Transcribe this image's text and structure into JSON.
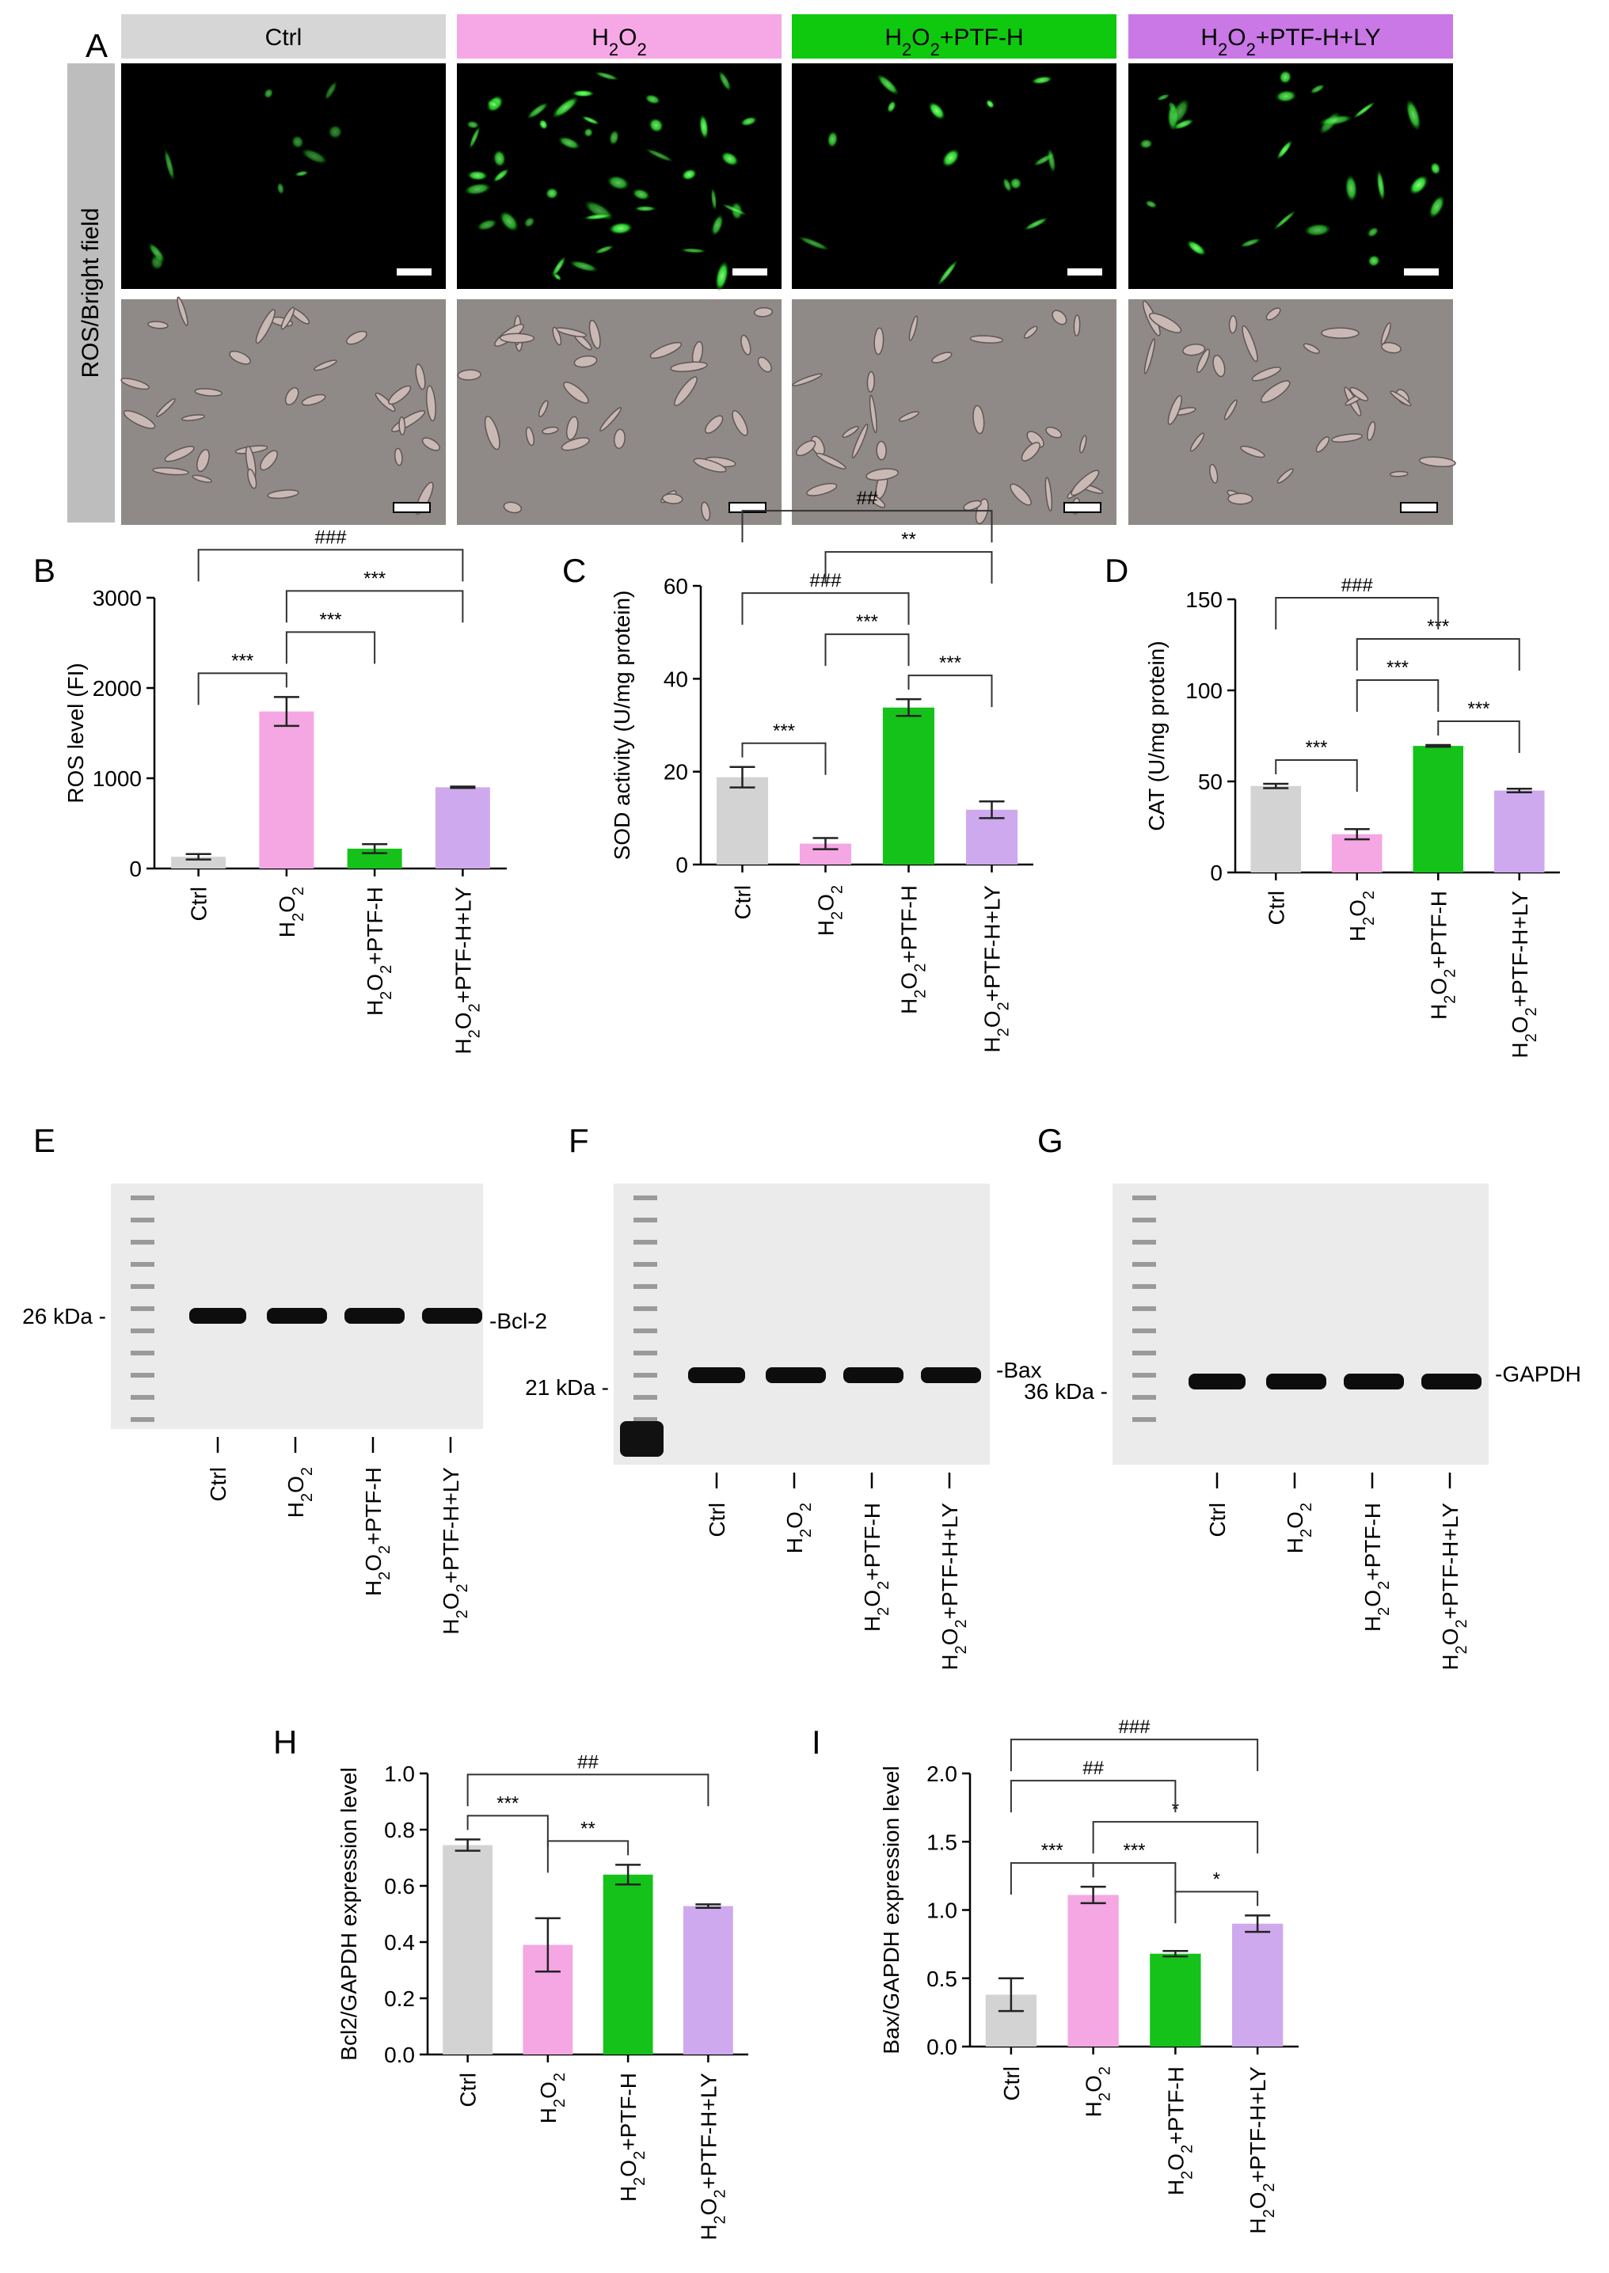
{
  "colors": {
    "ctrl": "#d3d3d3",
    "h2o2": "#f4a7e3",
    "ptfh": "#14c21a",
    "ptfhly": "#cfa9ee",
    "hdr_ctrl": "#d6d6d6",
    "hdr_h2o2": "#f6a8e6",
    "hdr_ptfh": "#0fc90f",
    "hdr_ly": "#c978e6",
    "side": "#bdbdbd"
  },
  "groups": [
    {
      "base": "Ctrl",
      "sub": "",
      "tail": ""
    },
    {
      "base": "H",
      "sub": "2",
      "mid": "O",
      "sub2": "2",
      "tail": ""
    },
    {
      "base": "H",
      "sub": "2",
      "mid": "O",
      "sub2": "2",
      "tail": "+PTF-H"
    },
    {
      "base": "H",
      "sub": "2",
      "mid": "O",
      "sub2": "2",
      "tail": "+PTF-H+LY"
    }
  ],
  "panelA": {
    "letter": "A",
    "side_label": "ROS/Bright field",
    "headers": [
      "Ctrl",
      "H2O2",
      "H2O2+PTF-H",
      "H2O2+PTF-H+LY"
    ]
  },
  "chart_data": [
    {
      "id": "B",
      "type": "bar",
      "ylabel": "ROS level (FI)",
      "ylim": [
        0,
        3000
      ],
      "yticks": [
        0,
        1000,
        2000,
        3000
      ],
      "tick_format": "int",
      "values": [
        130,
        1740,
        220,
        900
      ],
      "errors": [
        30,
        160,
        50,
        8
      ],
      "brackets": [
        {
          "a": 0,
          "b": 1,
          "level": 1,
          "text": "***"
        },
        {
          "a": 1,
          "b": 2,
          "level": 2,
          "text": "***"
        },
        {
          "a": 1,
          "b": 3,
          "level": 3,
          "text": "***"
        },
        {
          "a": 0,
          "b": 3,
          "level": 4,
          "text": "###"
        }
      ]
    },
    {
      "id": "C",
      "type": "bar",
      "ylabel": "SOD activity (U/mg protein)",
      "ylim": [
        0,
        60
      ],
      "yticks": [
        0,
        20,
        40,
        60
      ],
      "tick_format": "int",
      "values": [
        18.8,
        4.5,
        33.8,
        11.8
      ],
      "errors": [
        2.2,
        1.2,
        1.8,
        1.8
      ],
      "brackets": [
        {
          "a": 0,
          "b": 1,
          "level": 1,
          "text": "***"
        },
        {
          "a": 1,
          "b": 2,
          "level": 2,
          "text": "***"
        },
        {
          "a": 2,
          "b": 3,
          "level": 1,
          "text": "***"
        },
        {
          "a": 0,
          "b": 2,
          "level": 3,
          "text": "###"
        },
        {
          "a": 1,
          "b": 3,
          "level": 4,
          "text": "**"
        },
        {
          "a": 0,
          "b": 3,
          "level": 5,
          "text": "##"
        }
      ]
    },
    {
      "id": "D",
      "type": "bar",
      "ylabel": "CAT (U/mg protein)",
      "ylim": [
        0,
        150
      ],
      "yticks": [
        0,
        50,
        100,
        150
      ],
      "tick_format": "int",
      "values": [
        47.5,
        21,
        69.5,
        45
      ],
      "errors": [
        1.2,
        2.8,
        0.5,
        1.0
      ],
      "brackets": [
        {
          "a": 0,
          "b": 1,
          "level": 1,
          "text": "***"
        },
        {
          "a": 1,
          "b": 2,
          "level": 2,
          "text": "***"
        },
        {
          "a": 2,
          "b": 3,
          "level": 1,
          "text": "***"
        },
        {
          "a": 1,
          "b": 3,
          "level": 3,
          "text": "***"
        },
        {
          "a": 0,
          "b": 2,
          "level": 4,
          "text": "###"
        }
      ]
    },
    {
      "id": "H",
      "type": "bar",
      "ylabel": "Bcl2/GAPDH expression level",
      "ylim": [
        0,
        1.0
      ],
      "yticks": [
        0,
        0.2,
        0.4,
        0.6,
        0.8,
        1.0
      ],
      "tick_format": "1",
      "values": [
        0.745,
        0.39,
        0.64,
        0.528
      ],
      "errors": [
        0.02,
        0.095,
        0.035,
        0.006
      ],
      "brackets": [
        {
          "a": 0,
          "b": 1,
          "level": 1,
          "text": "***"
        },
        {
          "a": 1,
          "b": 2,
          "level": 1,
          "text": "**"
        },
        {
          "a": 0,
          "b": 3,
          "level": 2,
          "text": "##"
        }
      ]
    },
    {
      "id": "I",
      "type": "bar",
      "ylabel": "Bax/GAPDH expression level",
      "ylim": [
        0,
        2.0
      ],
      "yticks": [
        0,
        0.5,
        1.0,
        1.5,
        2.0
      ],
      "tick_format": "1",
      "values": [
        0.38,
        1.11,
        0.68,
        0.9
      ],
      "errors": [
        0.12,
        0.06,
        0.02,
        0.06
      ],
      "brackets": [
        {
          "a": 0,
          "b": 1,
          "level": 1,
          "text": "***"
        },
        {
          "a": 1,
          "b": 2,
          "level": 1,
          "text": "***"
        },
        {
          "a": 2,
          "b": 3,
          "level": 1,
          "text": "*"
        },
        {
          "a": 1,
          "b": 3,
          "level": 2,
          "text": "*"
        },
        {
          "a": 0,
          "b": 2,
          "level": 3,
          "text": "##"
        },
        {
          "a": 0,
          "b": 3,
          "level": 4,
          "text": "###"
        }
      ]
    }
  ],
  "blots": [
    {
      "id": "E",
      "protein": "Bcl-2",
      "kda": "26 kDa"
    },
    {
      "id": "F",
      "protein": "Bax",
      "kda": "21 kDa"
    },
    {
      "id": "G",
      "protein": "GAPDH",
      "kda": "36 kDa"
    }
  ]
}
